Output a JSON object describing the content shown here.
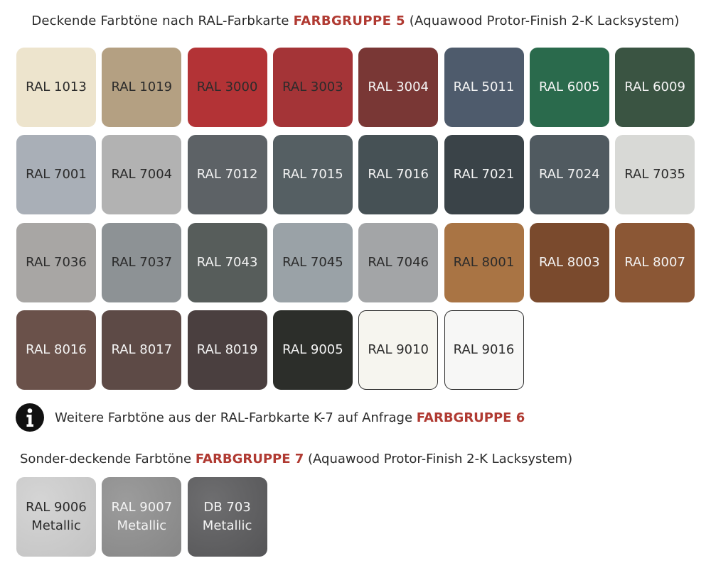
{
  "section1": {
    "prefix": "Deckende Farbtöne nach RAL-Farbkarte",
    "group": "FARBGRUPPE 5",
    "suffix": "(Aquawood Protor-Finish 2-K Lacksystem)"
  },
  "swatches": [
    {
      "label": "RAL 1013",
      "color": "#EDE4CD",
      "text": "#2b2b2b"
    },
    {
      "label": "RAL 1019",
      "color": "#B4A082",
      "text": "#2b2b2b"
    },
    {
      "label": "RAL 3000",
      "color": "#B33336",
      "text": "#2b2b2b"
    },
    {
      "label": "RAL 3003",
      "color": "#A43437",
      "text": "#2b2b2b"
    },
    {
      "label": "RAL 3004",
      "color": "#793735",
      "text": "#f4f4f4"
    },
    {
      "label": "RAL 5011",
      "color": "#4E5B6C",
      "text": "#f4f4f4"
    },
    {
      "label": "RAL 6005",
      "color": "#2A6A4C",
      "text": "#f4f4f4"
    },
    {
      "label": "RAL 6009",
      "color": "#3A5442",
      "text": "#f4f4f4"
    },
    {
      "label": "RAL 7001",
      "color": "#A9AFB7",
      "text": "#2b2b2b"
    },
    {
      "label": "RAL 7004",
      "color": "#B2B2B2",
      "text": "#2b2b2b"
    },
    {
      "label": "RAL 7012",
      "color": "#5D6266",
      "text": "#f4f4f4"
    },
    {
      "label": "RAL 7015",
      "color": "#555F63",
      "text": "#f4f4f4"
    },
    {
      "label": "RAL 7016",
      "color": "#465155",
      "text": "#f4f4f4"
    },
    {
      "label": "RAL 7021",
      "color": "#3A4348",
      "text": "#f4f4f4"
    },
    {
      "label": "RAL 7024",
      "color": "#505A60",
      "text": "#f4f4f4"
    },
    {
      "label": "RAL 7035",
      "color": "#D8D9D6",
      "text": "#2b2b2b"
    },
    {
      "label": "RAL 7036",
      "color": "#A8A6A4",
      "text": "#2b2b2b"
    },
    {
      "label": "RAL 7037",
      "color": "#8D9295",
      "text": "#2b2b2b"
    },
    {
      "label": "RAL 7043",
      "color": "#575D5B",
      "text": "#f4f4f4"
    },
    {
      "label": "RAL 7045",
      "color": "#9AA2A7",
      "text": "#2b2b2b"
    },
    {
      "label": "RAL 7046",
      "color": "#A3A5A7",
      "text": "#2b2b2b"
    },
    {
      "label": "RAL 8001",
      "color": "#A97444",
      "text": "#2b2b2b"
    },
    {
      "label": "RAL 8003",
      "color": "#7A4A2D",
      "text": "#f4f4f4"
    },
    {
      "label": "RAL 8007",
      "color": "#8B5735",
      "text": "#f4f4f4"
    },
    {
      "label": "RAL 8016",
      "color": "#6A514A",
      "text": "#f4f4f4"
    },
    {
      "label": "RAL 8017",
      "color": "#5D4A46",
      "text": "#f4f4f4"
    },
    {
      "label": "RAL 8019",
      "color": "#4A3F3F",
      "text": "#f4f4f4"
    },
    {
      "label": "RAL 9005",
      "color": "#2C2E2A",
      "text": "#f4f4f4"
    },
    {
      "label": "RAL 9010",
      "color": "#F6F5EF",
      "text": "#2b2b2b",
      "outlined": true
    },
    {
      "label": "RAL 9016",
      "color": "#F7F7F6",
      "text": "#2b2b2b",
      "outlined": true
    }
  ],
  "info_note": {
    "text": "Weitere  Farbtöne aus der RAL-Farbkarte K-7 auf Anfrage",
    "group": "FARBGRUPPE 6",
    "icon": "info-circle-icon"
  },
  "section2": {
    "prefix": "Sonder-deckende Farbtöne",
    "group": "FARBGRUPPE 7",
    "suffix": "(Aquawood Protor-Finish 2-K Lacksystem)"
  },
  "metallic_swatches": [
    {
      "label": "RAL 9006",
      "sublabel": "Metallic",
      "color": "#CFCFCF",
      "text": "#2b2b2b"
    },
    {
      "label": "RAL 9007",
      "sublabel": "Metallic",
      "color": "#8E8E8E",
      "text": "#f4f4f4"
    },
    {
      "label": "DB 703",
      "sublabel": "Metallic",
      "color": "#5A5A5C",
      "text": "#f4f4f4"
    }
  ],
  "accent_color": "#b03a32"
}
